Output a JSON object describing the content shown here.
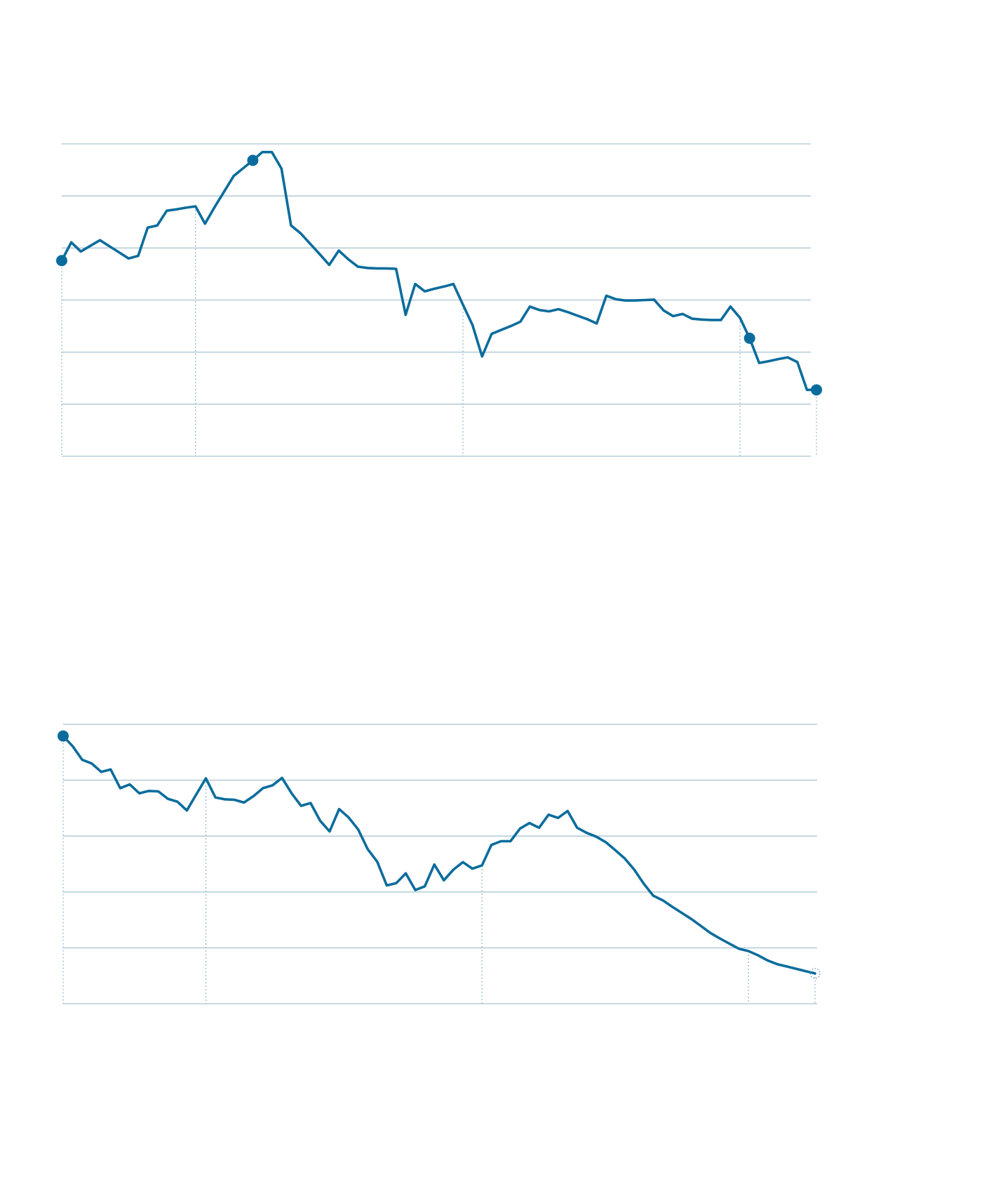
{
  "colors": {
    "line": "#0a6c9c",
    "grid": "#b7cdd9",
    "guide": "#8fb6cc"
  },
  "chart_data": [
    {
      "type": "line",
      "x": [
        0,
        1,
        2,
        3,
        4,
        5,
        6,
        7,
        8,
        9,
        10,
        11,
        12,
        13,
        14,
        15,
        16,
        17,
        18,
        19,
        20,
        21,
        22,
        23,
        24,
        25,
        26,
        27,
        28,
        29,
        30,
        31,
        32,
        33,
        34,
        35,
        36,
        37,
        38,
        39,
        40,
        41,
        42,
        43,
        44,
        45,
        46,
        47,
        48,
        49,
        50,
        51,
        52,
        53,
        54,
        55,
        56,
        57,
        58,
        59,
        60,
        61,
        62,
        63,
        64,
        65,
        66,
        67,
        68,
        69,
        70,
        71,
        72,
        73,
        74,
        75,
        76,
        77,
        78,
        79
      ],
      "values": [
        3.71,
        4.13,
        3.92,
        4.05,
        4.18,
        4.04,
        3.9,
        3.76,
        3.82,
        4.47,
        4.52,
        4.86,
        4.89,
        4.93,
        4.96,
        4.56,
        4.94,
        5.3,
        5.66,
        5.84,
        6.02,
        6.21,
        6.21,
        5.83,
        4.52,
        4.34,
        4.1,
        3.86,
        3.61,
        3.94,
        3.74,
        3.57,
        3.54,
        3.53,
        3.53,
        3.52,
        2.46,
        3.17,
        3.0,
        3.06,
        3.11,
        3.17,
        2.69,
        2.22,
        1.5,
        2.02,
        2.11,
        2.2,
        2.3,
        2.65,
        2.57,
        2.54,
        2.59,
        2.52,
        2.44,
        2.36,
        2.26,
        2.9,
        2.82,
        2.79,
        2.79,
        2.8,
        2.81,
        2.56,
        2.43,
        2.48,
        2.37,
        2.35,
        2.34,
        2.34,
        2.65,
        2.39,
        1.92,
        1.35,
        1.39,
        1.44,
        1.48,
        1.37,
        0.73,
        0.73
      ],
      "markers": [
        0,
        20,
        72,
        79
      ],
      "ylim": [
        -0.8,
        6.4
      ],
      "xlim": [
        0,
        79
      ],
      "grid_values": [
        0.4,
        1.6,
        2.8,
        4.0,
        5.2,
        6.4
      ],
      "guides_x": [
        14,
        42,
        71,
        79
      ]
    },
    {
      "type": "line",
      "x": [
        0,
        1,
        2,
        3,
        4,
        5,
        6,
        7,
        8,
        9,
        10,
        11,
        12,
        13,
        14,
        15,
        16,
        17,
        18,
        19,
        20,
        21,
        22,
        23,
        24,
        25,
        26,
        27,
        28,
        29,
        30,
        31,
        32,
        33,
        34,
        35,
        36,
        37,
        38,
        39,
        40,
        41,
        42,
        43,
        44,
        45,
        46,
        47,
        48,
        49,
        50,
        51,
        52,
        53,
        54,
        55,
        56,
        57,
        58,
        59,
        60,
        61,
        62,
        63,
        64,
        65,
        66,
        67,
        68,
        69,
        70,
        71,
        72,
        73,
        74,
        75,
        76,
        77,
        78,
        79
      ],
      "values": [
        5.15,
        4.93,
        4.64,
        4.56,
        4.38,
        4.43,
        4.03,
        4.11,
        3.92,
        3.97,
        3.96,
        3.8,
        3.74,
        3.55,
        3.9,
        4.24,
        3.83,
        3.79,
        3.78,
        3.72,
        3.86,
        4.03,
        4.09,
        4.25,
        3.92,
        3.65,
        3.71,
        3.33,
        3.1,
        3.58,
        3.4,
        3.14,
        2.72,
        2.45,
        1.94,
        1.99,
        2.2,
        1.84,
        1.92,
        2.39,
        2.05,
        2.28,
        2.44,
        2.3,
        2.37,
        2.81,
        2.89,
        2.89,
        3.16,
        3.28,
        3.18,
        3.46,
        3.39,
        3.54,
        3.18,
        3.07,
        2.99,
        2.87,
        2.7,
        2.52,
        2.28,
        1.98,
        1.72,
        1.62,
        1.48,
        1.35,
        1.22,
        1.07,
        0.92,
        0.8,
        0.69,
        0.58,
        0.53,
        0.44,
        0.33,
        0.25,
        0.2,
        0.15,
        0.1,
        0.05
      ],
      "markers": [
        0
      ],
      "open_markers": [
        79
      ],
      "ylim": [
        -0.6,
        5.4
      ],
      "xlim": [
        0,
        79
      ],
      "grid_values": [
        0.6,
        1.8,
        3.0,
        4.2,
        5.4
      ],
      "guides_x": [
        15,
        44,
        72,
        79
      ]
    }
  ]
}
